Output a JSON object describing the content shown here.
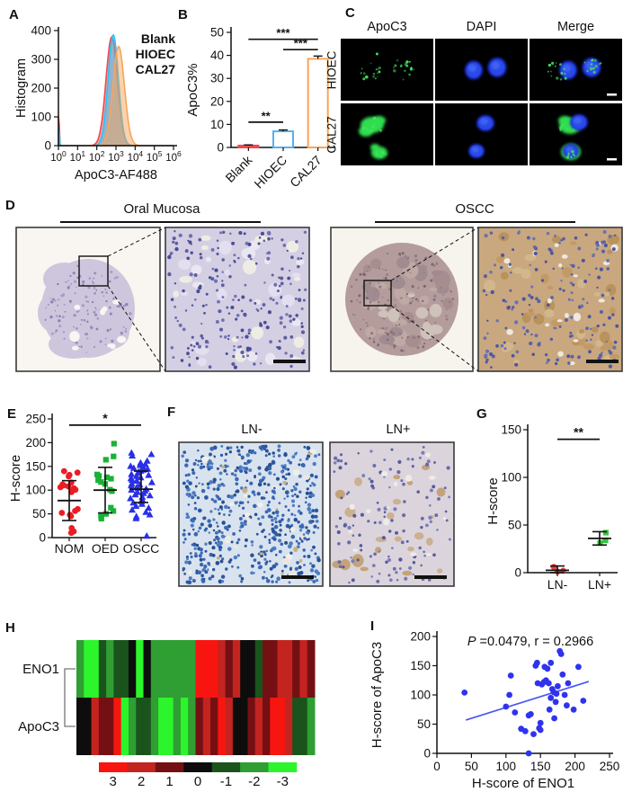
{
  "panels": {
    "a": {
      "label": "A"
    },
    "b": {
      "label": "B"
    },
    "c": {
      "label": "C",
      "col_labels": [
        "ApoC3",
        "DAPI",
        "Merge"
      ],
      "row_labels": [
        "HIOEC",
        "CAL27"
      ],
      "apoc3_stain_color": "#44e35f",
      "dapi_stain_color": "#2b49e8"
    },
    "d": {
      "label": "D",
      "group1_title": "Oral Mucosa",
      "group2_title": "OSCC"
    },
    "e": {
      "label": "E"
    },
    "f": {
      "label": "F",
      "image1_title": "LN-",
      "image2_title": "LN+"
    },
    "g": {
      "label": "G"
    },
    "h": {
      "label": "H"
    },
    "i": {
      "label": "I"
    }
  },
  "chart_data": [
    {
      "id": "A",
      "type": "area",
      "panel": "A",
      "xlabel": "ApoC3-AF488",
      "ylabel": "Histogram",
      "xscale": "log",
      "xlim_log10": [
        0,
        6
      ],
      "ylim": [
        0,
        400
      ],
      "yticks": [
        0,
        100,
        200,
        300,
        400
      ],
      "xtick_exponents": [
        "0",
        "1",
        "2",
        "3",
        "4",
        "5",
        "6"
      ],
      "xtick_base": "10",
      "legend_position": "top-right",
      "series": [
        {
          "name": "Blank",
          "color": "#f4464e",
          "peak_log10": 2.78,
          "peak_height": 378,
          "sigma_log10": 0.3,
          "axis_spike_height": 115
        },
        {
          "name": "HIOEC",
          "color": "#2bc4f3",
          "peak_log10": 2.86,
          "peak_height": 385,
          "sigma_log10": 0.27,
          "axis_spike_height": 70
        },
        {
          "name": "CAL27",
          "color": "#f7a55c",
          "peak_log10": 3.14,
          "peak_height": 345,
          "sigma_log10": 0.3,
          "axis_spike_height": 0
        }
      ]
    },
    {
      "id": "B",
      "type": "bar",
      "panel": "B",
      "ylabel": "ApoC3%",
      "ylim": [
        0,
        50
      ],
      "yticks": [
        0,
        10,
        20,
        30,
        40,
        50
      ],
      "categories": [
        "Blank",
        "HIOEC",
        "CAL27"
      ],
      "values": [
        0.8,
        7,
        38.5
      ],
      "errors": [
        0.3,
        0.6,
        1.2
      ],
      "bar_stroke_colors": [
        "#f4464e",
        "#56b1ec",
        "#f7a55c"
      ],
      "bar_fill_colors": [
        "#f4464e",
        "#ffffff",
        "#ffffff"
      ],
      "significance": [
        {
          "from": 0,
          "to": 1,
          "label": "**",
          "y": 11
        },
        {
          "from": 1,
          "to": 2,
          "label": "***",
          "y": 42.5
        },
        {
          "from": 0,
          "to": 2,
          "label": "***",
          "y": 47
        }
      ]
    },
    {
      "id": "E",
      "type": "scatter",
      "panel": "E",
      "ylabel": "H-score",
      "ylim": [
        0,
        250
      ],
      "yticks": [
        0,
        50,
        100,
        150,
        200,
        250
      ],
      "groups": [
        {
          "name": "NOM",
          "marker": "circle",
          "color": "#ec1c24",
          "values": [
            140,
            137,
            132,
            129,
            116,
            112,
            110,
            108,
            106,
            104,
            101,
            99,
            96,
            60,
            56,
            52,
            48,
            45,
            20,
            13,
            10
          ],
          "mean": 78,
          "err_low": 36,
          "err_high": 120
        },
        {
          "name": "OED",
          "marker": "square",
          "color": "#19b235",
          "values": [
            198,
            171,
            164,
            133,
            130,
            127,
            124,
            121,
            117,
            113,
            101,
            98,
            63,
            56,
            50,
            46,
            43,
            40
          ],
          "mean": 100,
          "err_low": 52,
          "err_high": 148
        },
        {
          "name": "OSCC",
          "marker": "triangle",
          "color": "#2a2fe8",
          "values": [
            178,
            175,
            172,
            161,
            157,
            154,
            152,
            150,
            148,
            146,
            144,
            142,
            140,
            138,
            136,
            133,
            131,
            129,
            126,
            124,
            121,
            119,
            116,
            113,
            111,
            109,
            106,
            104,
            102,
            100,
            98,
            95,
            93,
            90,
            88,
            85,
            82,
            79,
            76,
            73,
            70,
            66,
            62,
            58,
            53,
            48,
            44,
            40,
            3
          ],
          "mean": 102,
          "err_low": 74,
          "err_high": 140
        }
      ],
      "significance": [
        {
          "from": 0,
          "to": 2,
          "label": "*",
          "y": 237
        }
      ]
    },
    {
      "id": "G",
      "type": "scatter",
      "panel": "G",
      "ylabel": "H-score",
      "ylim": [
        0,
        150
      ],
      "yticks": [
        0,
        50,
        100,
        150
      ],
      "groups": [
        {
          "name": "LN-",
          "marker": "circle",
          "color": "#ee3b43",
          "values": [
            6,
            2,
            1
          ],
          "mean": 2.5,
          "err_low": 0,
          "err_high": 7
        },
        {
          "name": "LN+",
          "marker": "square",
          "color": "#35c53c",
          "values": [
            42,
            34,
            31
          ],
          "mean": 36,
          "err_low": 29,
          "err_high": 43
        }
      ],
      "significance": [
        {
          "from": 0,
          "to": 1,
          "label": "**",
          "y": 140
        }
      ]
    },
    {
      "id": "H",
      "type": "heatmap",
      "panel": "H",
      "rows": [
        "ENO1",
        "ApoC3"
      ],
      "values": {
        "ENO1": [
          -2,
          -3,
          -3,
          -1,
          -2,
          -1,
          -1,
          0,
          -3,
          0,
          -2,
          -2,
          -2,
          -2,
          -2,
          -2,
          3,
          3,
          3,
          2,
          1,
          2,
          0,
          0,
          -1,
          1,
          1,
          2,
          2,
          1,
          2,
          1
        ],
        "ApoC3": [
          0,
          0,
          2,
          1,
          1,
          3,
          -3,
          -2,
          -1,
          -1,
          -2,
          -3,
          -3,
          -2,
          -3,
          -2,
          1,
          2,
          1,
          3,
          2,
          0,
          0,
          1,
          2,
          1,
          3,
          3,
          2,
          -1,
          -1,
          -2
        ]
      },
      "scale_labels": [
        "3",
        "2",
        "1",
        "0",
        "-1",
        "-2",
        "-3"
      ],
      "scale_colors": [
        "#f81510",
        "#c32420",
        "#741013",
        "#0d0d0d",
        "#1a531b",
        "#2f9e33",
        "#2cf52c"
      ]
    },
    {
      "id": "I",
      "type": "scatter_xy",
      "panel": "I",
      "annotation_p_italic": "P",
      "annotation_rest": " =0.0479, r = 0.2966",
      "annotation": "P =0.0479, r = 0.2966",
      "xlabel": "H-score of ENO1",
      "ylabel": "H-score of ApoC3",
      "xlim": [
        0,
        250
      ],
      "ylim": [
        0,
        200
      ],
      "xticks": [
        0,
        50,
        100,
        150,
        200,
        250
      ],
      "yticks": [
        0,
        50,
        100,
        150,
        200
      ],
      "marker_color": "#2f33ee",
      "line_color": "#4a55f2",
      "points": [
        [
          40,
          104
        ],
        [
          100,
          80
        ],
        [
          105,
          100
        ],
        [
          107,
          133
        ],
        [
          113,
          70
        ],
        [
          122,
          42
        ],
        [
          128,
          38
        ],
        [
          133,
          0
        ],
        [
          133,
          65
        ],
        [
          136,
          67
        ],
        [
          140,
          33
        ],
        [
          143,
          150
        ],
        [
          145,
          155
        ],
        [
          146,
          120
        ],
        [
          148,
          43
        ],
        [
          150,
          40
        ],
        [
          150,
          52
        ],
        [
          152,
          118
        ],
        [
          155,
          122
        ],
        [
          156,
          148
        ],
        [
          158,
          125
        ],
        [
          160,
          145
        ],
        [
          162,
          120
        ],
        [
          163,
          75
        ],
        [
          165,
          95
        ],
        [
          165,
          155
        ],
        [
          167,
          110
        ],
        [
          169,
          105
        ],
        [
          170,
          60
        ],
        [
          172,
          88
        ],
        [
          173,
          102
        ],
        [
          175,
          115
        ],
        [
          178,
          175
        ],
        [
          180,
          170
        ],
        [
          182,
          135
        ],
        [
          185,
          100
        ],
        [
          188,
          82
        ],
        [
          190,
          120
        ],
        [
          198,
          75
        ],
        [
          205,
          148
        ],
        [
          212,
          90
        ]
      ],
      "trend_line": {
        "x1": 42,
        "y1": 57,
        "x2": 220,
        "y2": 123
      }
    }
  ]
}
